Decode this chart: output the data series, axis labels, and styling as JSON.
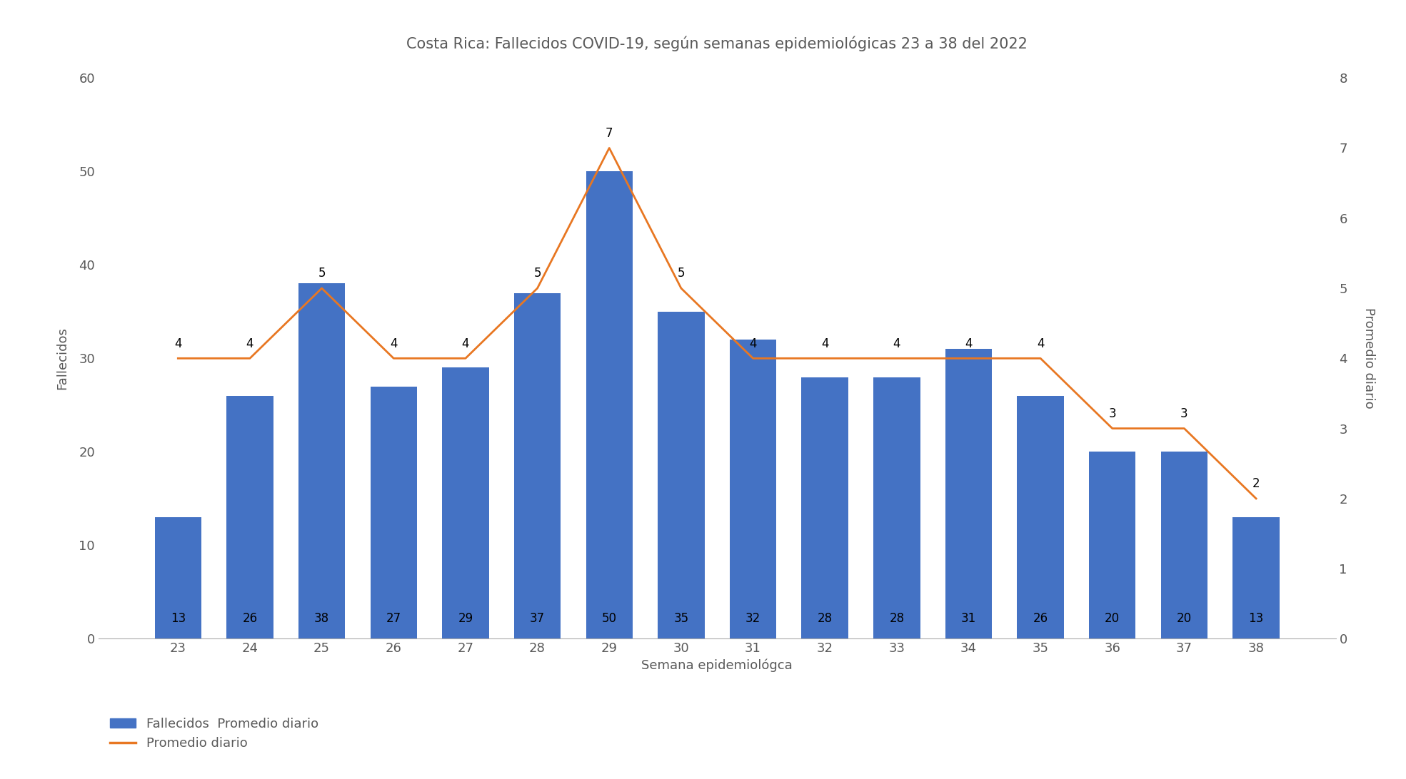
{
  "title": "Costa Rica: Fallecidos COVID-19, según semanas epidemiológicas 23 a 38 del 2022",
  "xlabel": "Semana epidemiológca",
  "ylabel_left": "Fallecidos",
  "ylabel_right": "Promedio diario",
  "weeks": [
    23,
    24,
    25,
    26,
    27,
    28,
    29,
    30,
    31,
    32,
    33,
    34,
    35,
    36,
    37,
    38
  ],
  "fallecidos": [
    13,
    26,
    38,
    27,
    29,
    37,
    50,
    35,
    32,
    28,
    28,
    31,
    26,
    20,
    20,
    13
  ],
  "promedio": [
    4,
    4,
    5,
    4,
    4,
    5,
    7,
    5,
    4,
    4,
    4,
    4,
    4,
    3,
    3,
    2
  ],
  "bar_color": "#4472C4",
  "line_color": "#E87722",
  "ylim_left": [
    0,
    60
  ],
  "ylim_right": [
    0,
    8
  ],
  "yticks_left": [
    0,
    10,
    20,
    30,
    40,
    50,
    60
  ],
  "yticks_right": [
    0,
    1,
    2,
    3,
    4,
    5,
    6,
    7,
    8
  ],
  "legend_bar_label": "Fallecidos  Promedio diario",
  "legend_line_label": "Promedio diario",
  "background_color": "#ffffff",
  "title_fontsize": 15,
  "axis_fontsize": 13,
  "tick_fontsize": 13,
  "annotation_fontsize": 12,
  "title_color": "#595959",
  "tick_color": "#595959",
  "label_color": "#595959"
}
